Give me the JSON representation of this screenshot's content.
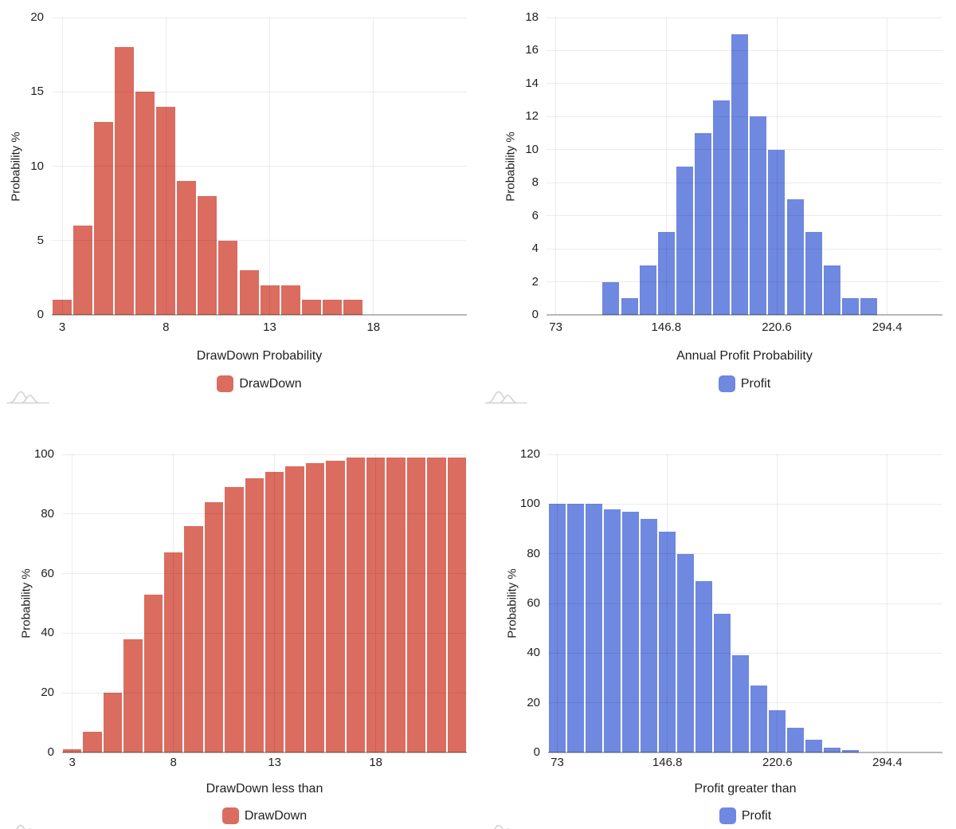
{
  "page": {
    "background": "#ffffff",
    "logo_color": "#d7d7d7",
    "text_color": "#1f1f1f"
  },
  "chart_data": [
    {
      "id": "drawdown-probability",
      "type": "bar",
      "title": "",
      "xlabel": "DrawDown Probability",
      "ylabel": "Probability %",
      "series_name": "DrawDown",
      "color": "#db6c60",
      "grid": true,
      "legend_position": "bottom",
      "ylim": [
        0,
        20
      ],
      "y_ticks": [
        0,
        5,
        10,
        15,
        20
      ],
      "x_range": [
        2.5,
        22.5
      ],
      "x_ticks": [
        {
          "value": 3,
          "label": "3"
        },
        {
          "value": 8,
          "label": "8"
        },
        {
          "value": 13,
          "label": "13"
        },
        {
          "value": 18,
          "label": "18"
        }
      ],
      "bin_width": 1,
      "bin_centers": [
        3,
        4,
        5,
        6,
        7,
        8,
        9,
        10,
        11,
        12,
        13,
        14,
        15,
        16,
        17
      ],
      "values": [
        1,
        6,
        13,
        18,
        15,
        14,
        9,
        8,
        5,
        3,
        2,
        2,
        1,
        1,
        1
      ]
    },
    {
      "id": "annual-profit-probability",
      "type": "bar",
      "title": "",
      "xlabel": "Annual Profit Probability",
      "ylabel": "Probability %",
      "series_name": "Profit",
      "color": "#6f88e0",
      "grid": true,
      "legend_position": "bottom",
      "ylim": [
        0,
        18
      ],
      "y_ticks": [
        0,
        2,
        4,
        6,
        8,
        10,
        12,
        14,
        16,
        18
      ],
      "x_range": [
        66.85,
        331.3
      ],
      "x_ticks": [
        {
          "value": 73,
          "label": "73"
        },
        {
          "value": 146.8,
          "label": "146.8"
        },
        {
          "value": 220.6,
          "label": "220.6"
        },
        {
          "value": 294.4,
          "label": "294.4"
        }
      ],
      "bin_width": 12.3,
      "bin_centers": [
        109.9,
        122.2,
        134.5,
        146.8,
        159.1,
        171.4,
        183.7,
        196.0,
        208.3,
        220.6,
        232.9,
        245.2,
        257.5,
        269.8,
        282.1
      ],
      "values": [
        2,
        1,
        3,
        5,
        9,
        11,
        13,
        17,
        12,
        10,
        7,
        5,
        3,
        1,
        1
      ]
    },
    {
      "id": "drawdown-less-than",
      "type": "bar",
      "title": "",
      "xlabel": "DrawDown less than",
      "ylabel": "Probability %",
      "series_name": "DrawDown",
      "color": "#db6c60",
      "grid": true,
      "legend_position": "bottom",
      "ylim": [
        0,
        100
      ],
      "y_ticks": [
        0,
        20,
        40,
        60,
        80,
        100
      ],
      "x_range": [
        2.5,
        22.5
      ],
      "x_ticks": [
        {
          "value": 3,
          "label": "3"
        },
        {
          "value": 8,
          "label": "8"
        },
        {
          "value": 13,
          "label": "13"
        },
        {
          "value": 18,
          "label": "18"
        }
      ],
      "bin_width": 1,
      "bin_centers": [
        3,
        4,
        5,
        6,
        7,
        8,
        9,
        10,
        11,
        12,
        13,
        14,
        15,
        16,
        17,
        18,
        19,
        20,
        21,
        22
      ],
      "values": [
        1,
        7,
        20,
        38,
        53,
        67,
        76,
        84,
        89,
        92,
        94,
        96,
        97,
        98,
        99,
        99,
        99,
        99,
        99,
        99
      ]
    },
    {
      "id": "profit-greater-than",
      "type": "bar",
      "title": "",
      "xlabel": "Profit greater than",
      "ylabel": "Probability %",
      "series_name": "Profit",
      "color": "#6f88e0",
      "grid": true,
      "legend_position": "bottom",
      "ylim": [
        0,
        120
      ],
      "y_ticks": [
        0,
        20,
        40,
        60,
        80,
        100,
        120
      ],
      "x_range": [
        66.85,
        331.3
      ],
      "x_ticks": [
        {
          "value": 73,
          "label": "73"
        },
        {
          "value": 146.8,
          "label": "146.8"
        },
        {
          "value": 220.6,
          "label": "220.6"
        },
        {
          "value": 294.4,
          "label": "294.4"
        }
      ],
      "bin_width": 12.3,
      "bin_centers": [
        73.0,
        85.3,
        97.6,
        109.9,
        122.2,
        134.5,
        146.8,
        159.1,
        171.4,
        183.7,
        196.0,
        208.3,
        220.6,
        232.9,
        245.2,
        257.5,
        269.8
      ],
      "values": [
        100,
        100,
        100,
        98,
        97,
        94,
        89,
        80,
        69,
        56,
        39,
        27,
        17,
        10,
        5,
        2,
        1
      ]
    }
  ]
}
